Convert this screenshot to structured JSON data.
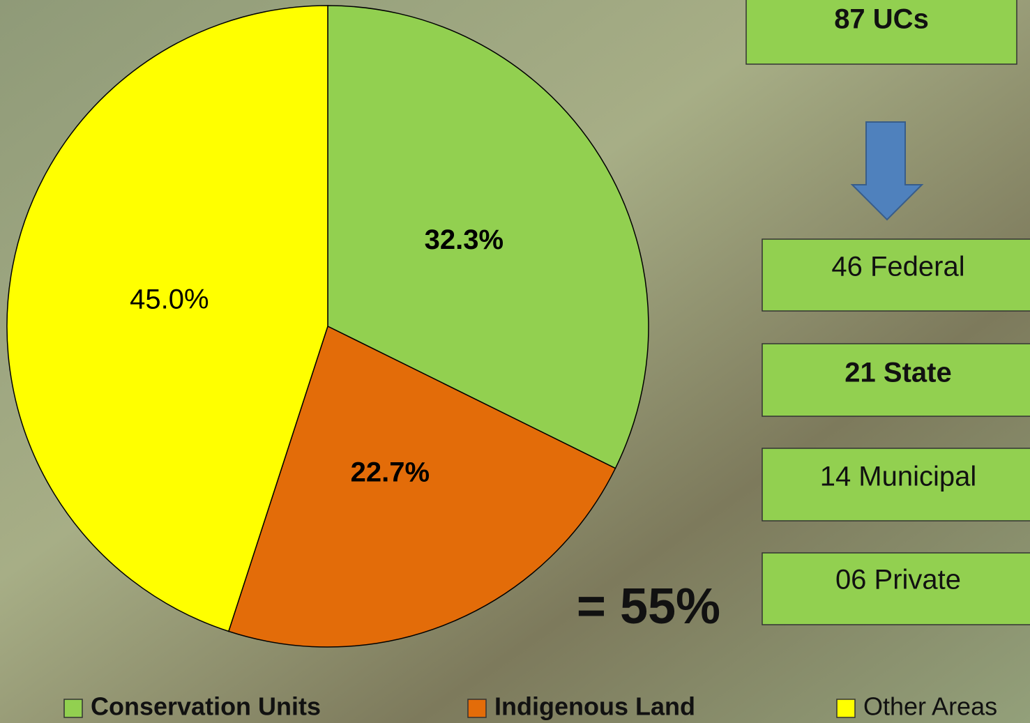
{
  "chart_data": {
    "type": "pie",
    "categories": [
      "Conservation Units",
      "Indigenous Land",
      "Other Areas"
    ],
    "values": [
      32.3,
      22.7,
      45.0
    ],
    "value_labels": [
      "32.3%",
      "22.7%",
      "45.0%"
    ],
    "colors": [
      "#92d050",
      "#e36c09",
      "#ffff00"
    ],
    "label_bold": [
      true,
      true,
      false
    ],
    "legend_bold": [
      true,
      true,
      false
    ],
    "legend": "bottom",
    "annotation": "= 55%"
  },
  "side_boxes": [
    {
      "label": "87 UCs",
      "bold": true
    },
    {
      "label": "46 Federal",
      "bold": false
    },
    {
      "label": "21 State",
      "bold": true
    },
    {
      "label": "14 Municipal",
      "bold": false
    },
    {
      "label": "06 Private",
      "bold": false
    }
  ]
}
